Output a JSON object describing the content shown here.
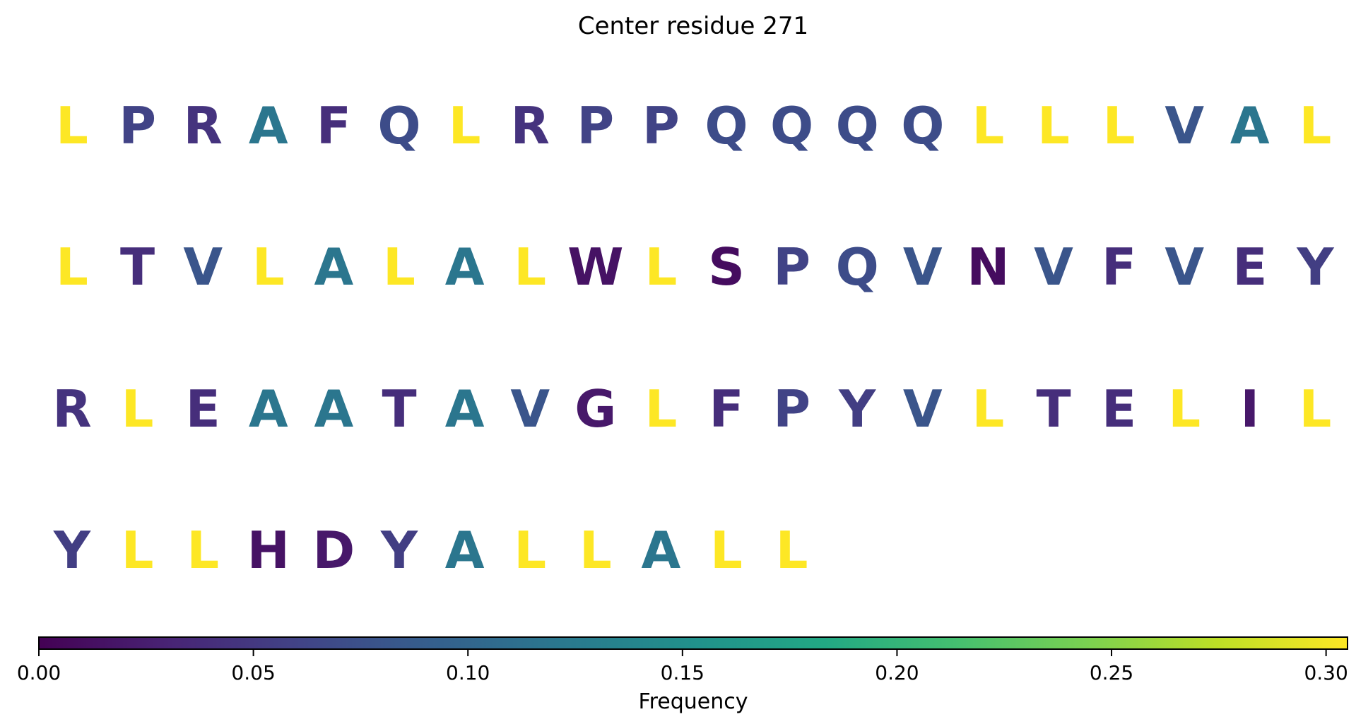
{
  "chart_data": {
    "type": "heatmap",
    "title": "Center residue 271",
    "residues": [
      {
        "letter": "L",
        "freq": 0.305
      },
      {
        "letter": "P",
        "freq": 0.06
      },
      {
        "letter": "R",
        "freq": 0.045
      },
      {
        "letter": "A",
        "freq": 0.12
      },
      {
        "letter": "F",
        "freq": 0.04
      },
      {
        "letter": "Q",
        "freq": 0.07
      },
      {
        "letter": "L",
        "freq": 0.305
      },
      {
        "letter": "R",
        "freq": 0.045
      },
      {
        "letter": "P",
        "freq": 0.06
      },
      {
        "letter": "P",
        "freq": 0.06
      },
      {
        "letter": "Q",
        "freq": 0.07
      },
      {
        "letter": "Q",
        "freq": 0.07
      },
      {
        "letter": "Q",
        "freq": 0.07
      },
      {
        "letter": "Q",
        "freq": 0.07
      },
      {
        "letter": "L",
        "freq": 0.305
      },
      {
        "letter": "L",
        "freq": 0.305
      },
      {
        "letter": "L",
        "freq": 0.305
      },
      {
        "letter": "V",
        "freq": 0.08
      },
      {
        "letter": "A",
        "freq": 0.12
      },
      {
        "letter": "L",
        "freq": 0.305
      },
      {
        "letter": "L",
        "freq": 0.305
      },
      {
        "letter": "T",
        "freq": 0.04
      },
      {
        "letter": "V",
        "freq": 0.08
      },
      {
        "letter": "L",
        "freq": 0.305
      },
      {
        "letter": "A",
        "freq": 0.12
      },
      {
        "letter": "L",
        "freq": 0.305
      },
      {
        "letter": "A",
        "freq": 0.12
      },
      {
        "letter": "L",
        "freq": 0.305
      },
      {
        "letter": "W",
        "freq": 0.015
      },
      {
        "letter": "L",
        "freq": 0.305
      },
      {
        "letter": "S",
        "freq": 0.01
      },
      {
        "letter": "P",
        "freq": 0.06
      },
      {
        "letter": "Q",
        "freq": 0.07
      },
      {
        "letter": "V",
        "freq": 0.08
      },
      {
        "letter": "N",
        "freq": 0.01
      },
      {
        "letter": "V",
        "freq": 0.08
      },
      {
        "letter": "F",
        "freq": 0.04
      },
      {
        "letter": "V",
        "freq": 0.08
      },
      {
        "letter": "E",
        "freq": 0.04
      },
      {
        "letter": "Y",
        "freq": 0.055
      },
      {
        "letter": "R",
        "freq": 0.045
      },
      {
        "letter": "L",
        "freq": 0.305
      },
      {
        "letter": "E",
        "freq": 0.04
      },
      {
        "letter": "A",
        "freq": 0.12
      },
      {
        "letter": "A",
        "freq": 0.12
      },
      {
        "letter": "T",
        "freq": 0.04
      },
      {
        "letter": "A",
        "freq": 0.12
      },
      {
        "letter": "V",
        "freq": 0.08
      },
      {
        "letter": "G",
        "freq": 0.02
      },
      {
        "letter": "L",
        "freq": 0.305
      },
      {
        "letter": "F",
        "freq": 0.04
      },
      {
        "letter": "P",
        "freq": 0.06
      },
      {
        "letter": "Y",
        "freq": 0.055
      },
      {
        "letter": "V",
        "freq": 0.08
      },
      {
        "letter": "L",
        "freq": 0.305
      },
      {
        "letter": "T",
        "freq": 0.04
      },
      {
        "letter": "E",
        "freq": 0.04
      },
      {
        "letter": "L",
        "freq": 0.305
      },
      {
        "letter": "I",
        "freq": 0.02
      },
      {
        "letter": "L",
        "freq": 0.305
      },
      {
        "letter": "Y",
        "freq": 0.055
      },
      {
        "letter": "L",
        "freq": 0.305
      },
      {
        "letter": "L",
        "freq": 0.305
      },
      {
        "letter": "H",
        "freq": 0.015
      },
      {
        "letter": "D",
        "freq": 0.02
      },
      {
        "letter": "Y",
        "freq": 0.055
      },
      {
        "letter": "A",
        "freq": 0.12
      },
      {
        "letter": "L",
        "freq": 0.305
      },
      {
        "letter": "L",
        "freq": 0.305
      },
      {
        "letter": "A",
        "freq": 0.12
      },
      {
        "letter": "L",
        "freq": 0.305
      },
      {
        "letter": "L",
        "freq": 0.305
      }
    ],
    "columns_per_row": 20,
    "colormap": "viridis",
    "colorbar": {
      "label": "Frequency",
      "range": [
        0,
        0.305
      ],
      "ticks": [
        "0.00",
        "0.05",
        "0.10",
        "0.15",
        "0.20",
        "0.25",
        "0.30"
      ],
      "tick_values": [
        0,
        0.05,
        0.1,
        0.15,
        0.2,
        0.25,
        0.3
      ]
    }
  }
}
